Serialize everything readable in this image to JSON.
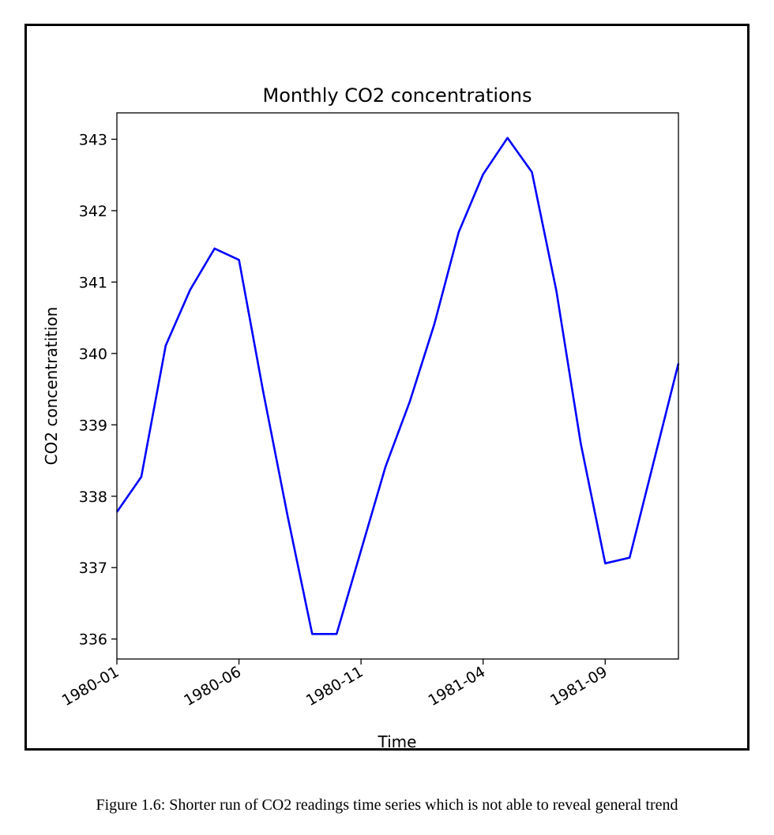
{
  "chart_data": {
    "type": "line",
    "title": "Monthly CO2 concentrations",
    "xlabel": "Time",
    "ylabel": "CO2 concentratition",
    "x": [
      "1980-01",
      "1980-02",
      "1980-03",
      "1980-04",
      "1980-05",
      "1980-06",
      "1980-07",
      "1980-08",
      "1980-09",
      "1980-10",
      "1980-11",
      "1980-12",
      "1981-01",
      "1981-02",
      "1981-03",
      "1981-04",
      "1981-05",
      "1981-06",
      "1981-07",
      "1981-08",
      "1981-09",
      "1981-10",
      "1981-11",
      "1981-12"
    ],
    "series": [
      {
        "color": "#0000ff",
        "values": [
          337.78,
          338.27,
          340.11,
          340.89,
          341.47,
          341.31,
          339.45,
          337.71,
          336.07,
          336.07,
          337.24,
          338.41,
          339.33,
          340.41,
          341.7,
          342.51,
          343.02,
          342.54,
          340.88,
          338.74,
          337.06,
          337.14,
          338.5,
          339.86
        ]
      }
    ],
    "xticks": [
      "1980-01",
      "1980-06",
      "1980-11",
      "1981-04",
      "1981-09"
    ],
    "yticks": [
      336,
      337,
      338,
      339,
      340,
      341,
      342,
      343
    ],
    "xlim": [
      "1980-01",
      "1981-12"
    ],
    "ylim": [
      335.72,
      343.37
    ],
    "grid": false,
    "legend": "none"
  },
  "caption": "Figure 1.6: Shorter run of CO2 readings time series which is not able to reveal general trend"
}
